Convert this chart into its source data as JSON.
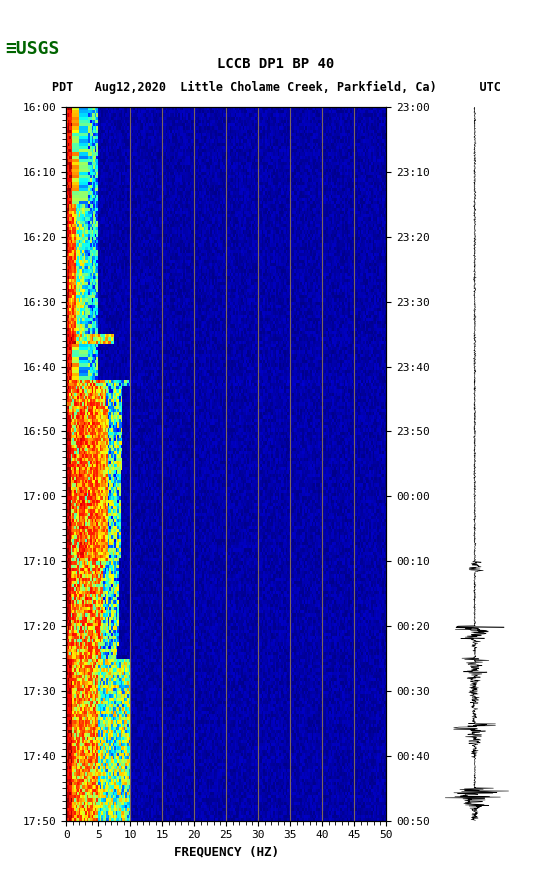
{
  "title_line1": "LCCB DP1 BP 40",
  "title_line2": "PDT   Aug12,2020  Little Cholame Creek, Parkfield, Ca)      UTC",
  "xlabel": "FREQUENCY (HZ)",
  "freq_min": 0,
  "freq_max": 50,
  "time_start_left": "16:00",
  "time_end_left": "17:50",
  "time_start_right": "23:00",
  "time_end_right": "00:50",
  "left_yticks": [
    "16:00",
    "16:10",
    "16:20",
    "16:30",
    "16:40",
    "16:50",
    "17:00",
    "17:10",
    "17:20",
    "17:30",
    "17:40",
    "17:50"
  ],
  "right_yticks": [
    "23:00",
    "23:10",
    "23:20",
    "23:30",
    "23:40",
    "23:50",
    "00:00",
    "00:10",
    "00:20",
    "00:30",
    "00:40",
    "00:50"
  ],
  "xticks": [
    0,
    5,
    10,
    15,
    20,
    25,
    30,
    35,
    40,
    45,
    50
  ],
  "vgrid_freqs": [
    10,
    15,
    20,
    25,
    30,
    35,
    40,
    45
  ],
  "background_color": "#000080",
  "grid_color": "#8B7355",
  "fig_bg": "#ffffff",
  "usgs_green": "#006400",
  "spectrogram_seed": 42
}
